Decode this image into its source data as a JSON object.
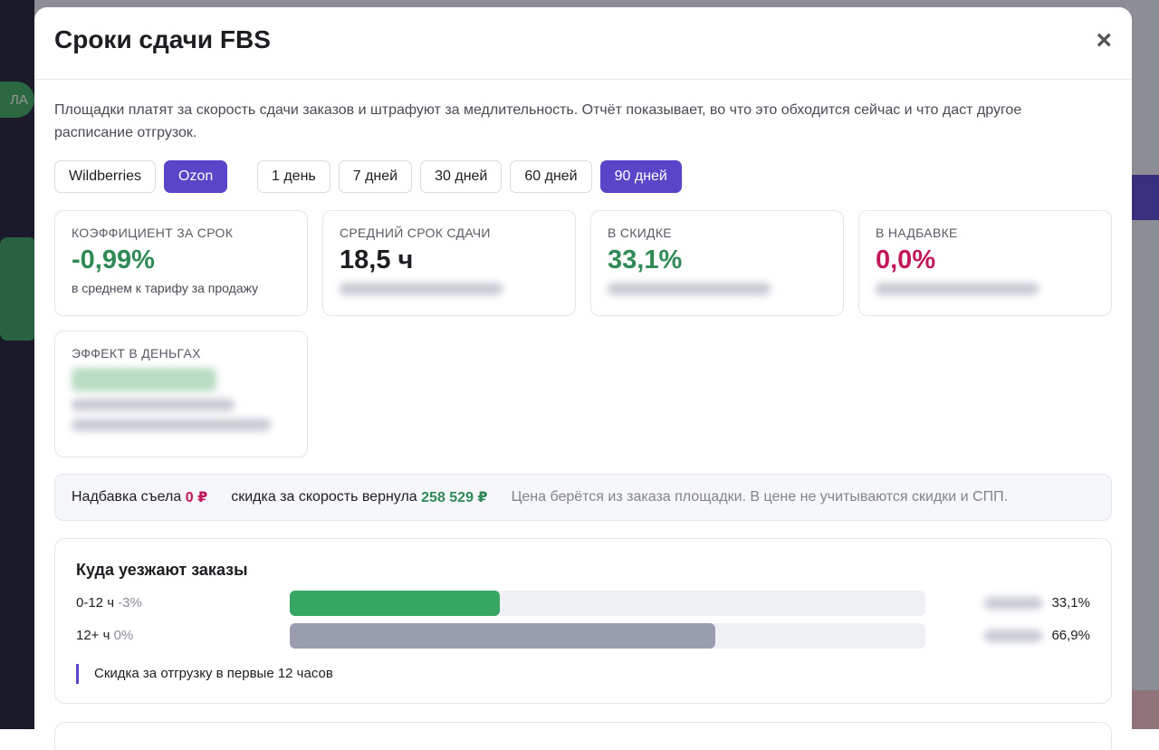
{
  "background": {
    "avatar": "ЛА"
  },
  "modal": {
    "title": "Сроки сдачи FBS",
    "close": "×",
    "description": "Площадки платят за скорость сдачи заказов и штрафуют за медлительность. Отчёт показывает, во что это обходится сейчас и что даст другое расписание отгрузок.",
    "marketplaces": [
      "Wildberries",
      "Ozon"
    ],
    "active_marketplace": 1,
    "periods": [
      "1 день",
      "7 дней",
      "30 дней",
      "60 дней",
      "90 дней"
    ],
    "active_period": 4,
    "cards": [
      {
        "label": "КОЭФФИЦИЕНТ ЗА СРОК",
        "value": "-0,99%",
        "color": "#2f8a55",
        "note": "в среднем к тарифу за продажу"
      },
      {
        "label": "СРЕДНИЙ СРОК СДАЧИ",
        "value": "18,5 ч",
        "color": "#1d1d22"
      },
      {
        "label": "В СКИДКЕ",
        "value": "33,1%",
        "color": "#2f8a55"
      },
      {
        "label": "В НАДБАВКЕ",
        "value": "0,0%",
        "color": "#c2185b"
      },
      {
        "label": "ЭФФЕКТ В ДЕНЬГАХ"
      }
    ],
    "summary": {
      "eaten_label": "Надбавка съела",
      "eaten": "0 ₽",
      "eaten_color": "#c2185b",
      "returned_label": "скидка за скорость вернула",
      "returned": "258 529 ₽",
      "returned_color": "#2f8a55",
      "note": "Цена берётся из заказа площадки. В цене не учитываются скидки и СПП."
    },
    "distribution": {
      "title": "Куда уезжают заказы",
      "range": [
        0,
        100
      ],
      "rows": [
        {
          "label": "0-12 ч",
          "rate": "-3%",
          "share": 33.1,
          "share_label": "33,1%",
          "color": "#38a663"
        },
        {
          "label": "12+ ч",
          "rate": "0%",
          "share": 66.9,
          "share_label": "66,9%",
          "color": "#9a9db0"
        }
      ],
      "legend": "Скидка за отгрузку в первые 12 часов"
    }
  }
}
